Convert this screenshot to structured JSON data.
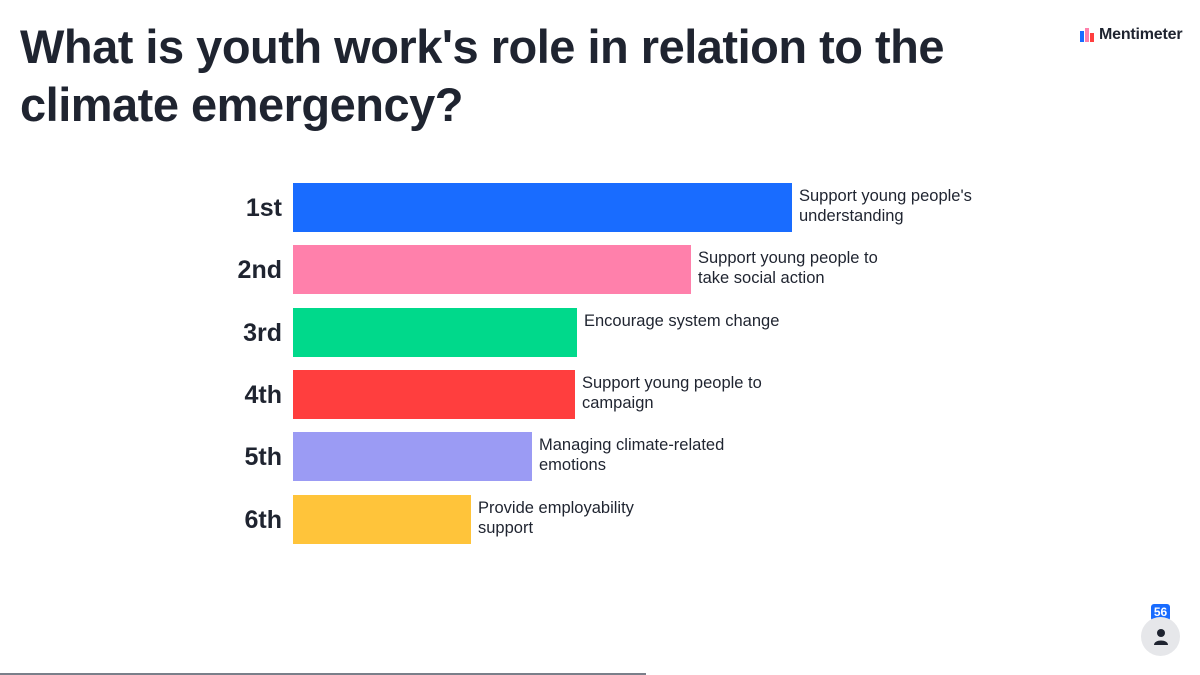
{
  "question": {
    "title": "What is youth work's role in relation to the climate emergency?"
  },
  "brand": {
    "name": "Mentimeter",
    "logo_icon": "mentimeter-logo"
  },
  "ranking": {
    "max_value": 1.0,
    "items": [
      {
        "rank": "1st",
        "label": "Support young people's understanding",
        "value": 1.0,
        "color": "#196cff"
      },
      {
        "rank": "2nd",
        "label": "Support young people to take social action",
        "value": 0.797,
        "color": "#ff80ab"
      },
      {
        "rank": "3rd",
        "label": "Encourage system change",
        "value": 0.569,
        "color": "#00d98b"
      },
      {
        "rank": "4th",
        "label": "Support young people to campaign",
        "value": 0.565,
        "color": "#ff3e3e"
      },
      {
        "rank": "5th",
        "label": "Managing climate-related emotions",
        "value": 0.479,
        "color": "#9b9bf4"
      },
      {
        "rank": "6th",
        "label": "Provide employability support",
        "value": 0.357,
        "color": "#ffc43a"
      }
    ]
  },
  "audience": {
    "count": "56",
    "icon": "person-icon"
  },
  "colors": {
    "accent": "#196cff",
    "text": "#1f2430"
  }
}
